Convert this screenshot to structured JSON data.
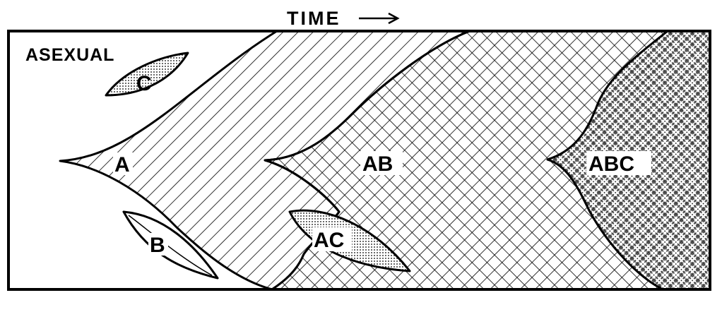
{
  "axis": {
    "label": "TIME"
  },
  "regions": {
    "asexual": "ASEXUAL",
    "a": "A",
    "b": "B",
    "c": "C",
    "ab": "AB",
    "ac": "AC",
    "abc": "ABC"
  },
  "colors": {
    "ink": "#000000",
    "paper": "#ffffff"
  }
}
